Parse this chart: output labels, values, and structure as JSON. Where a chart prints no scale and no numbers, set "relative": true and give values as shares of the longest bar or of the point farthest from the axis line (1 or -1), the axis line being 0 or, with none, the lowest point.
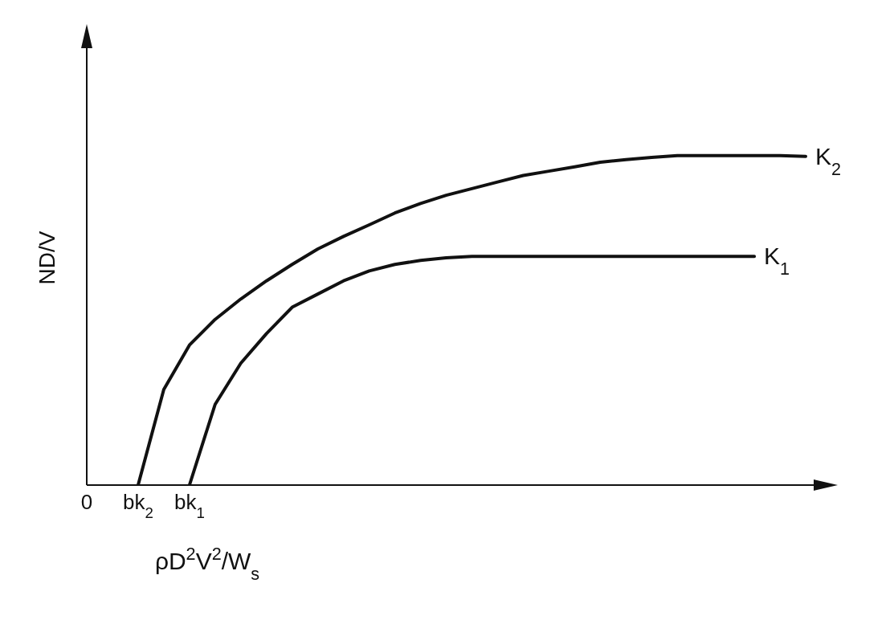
{
  "chart_data": {
    "type": "line",
    "relative": true,
    "xlabel": "ρD$^{2}$V$^{2}$/W$_{s}$",
    "ylabel": "ND/V",
    "categories": [
      "0",
      null,
      "bk$_{2}$",
      null,
      "bk$_{1}$",
      null,
      null,
      null,
      null,
      null,
      null,
      null,
      null,
      null,
      null,
      null,
      null,
      null,
      null,
      null,
      null,
      null,
      null,
      null,
      null,
      null,
      null,
      null,
      null
    ],
    "tick_labels": "x",
    "legend": false,
    "grid": false,
    "marker": "none",
    "line_style": "solid",
    "series": [
      {
        "name": "K$_{2}$",
        "color": "#111111",
        "values": [
          null,
          null,
          0,
          0.29,
          0.425,
          0.503,
          0.565,
          0.62,
          0.67,
          0.717,
          0.755,
          0.79,
          0.826,
          0.855,
          0.88,
          0.9,
          0.92,
          0.94,
          0.953,
          0.966,
          0.98,
          0.988,
          0.995,
          1,
          1,
          1,
          1,
          1,
          0.998
        ]
      },
      {
        "name": "K$_{1}$",
        "color": "#111111",
        "values": [
          null,
          null,
          null,
          null,
          0,
          0.245,
          0.37,
          0.46,
          0.54,
          0.58,
          0.62,
          0.65,
          0.67,
          0.682,
          0.69,
          0.694,
          0.694,
          0.694,
          0.694,
          0.694,
          0.694,
          0.694,
          0.694,
          0.694,
          0.694,
          0.694,
          0.694,
          null,
          null
        ]
      }
    ]
  }
}
